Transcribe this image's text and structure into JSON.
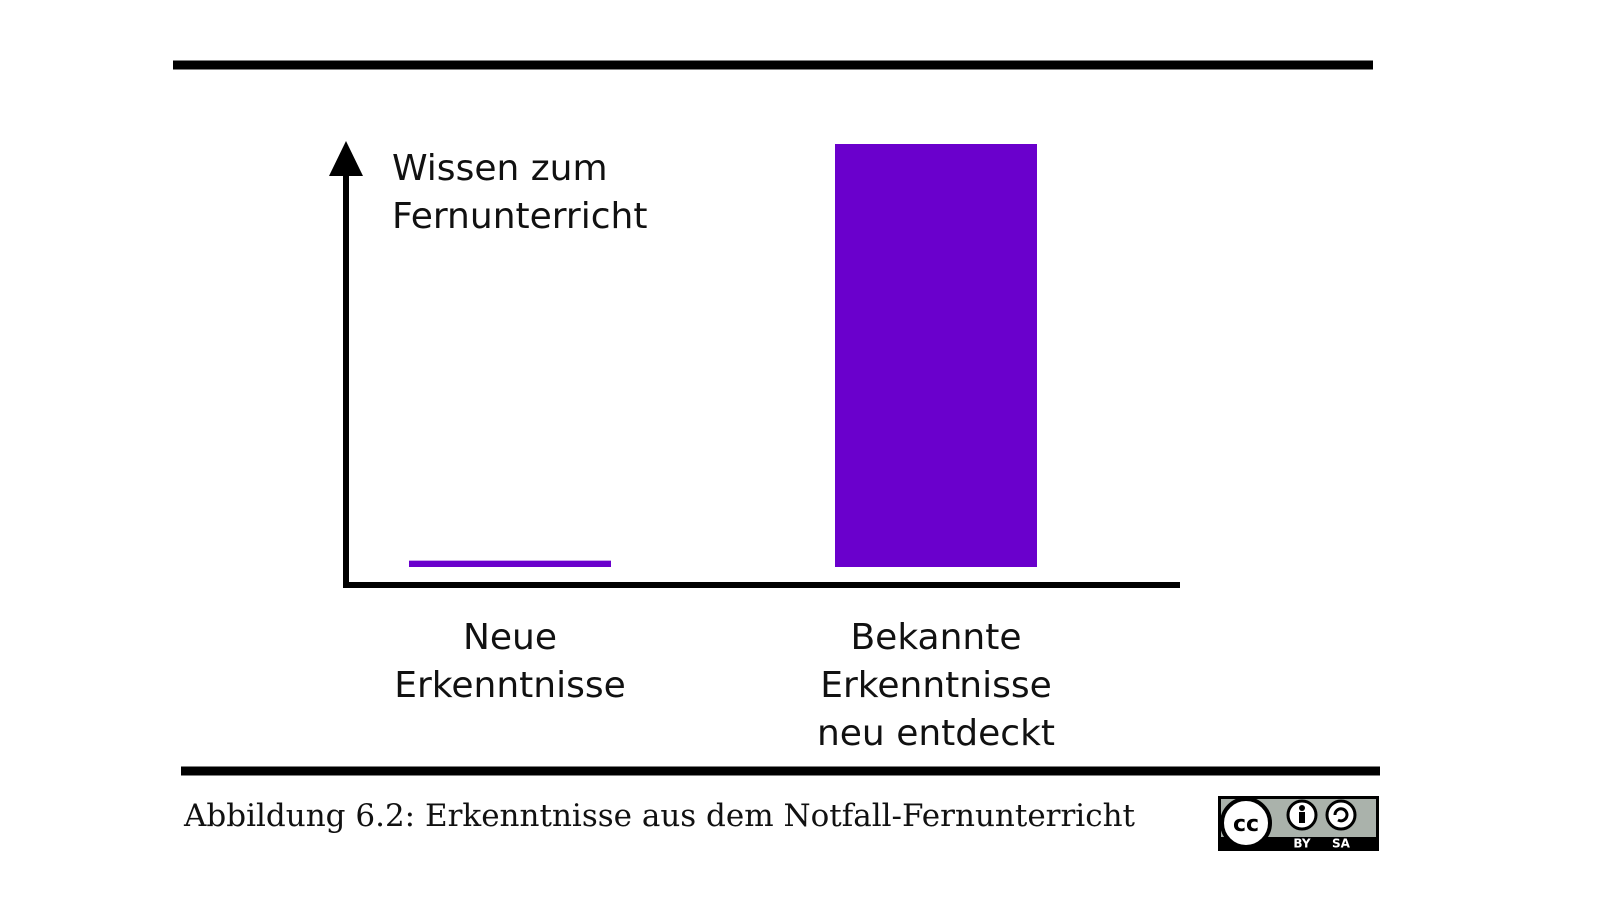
{
  "chart_data": {
    "type": "bar",
    "y_label": "Wissen zum Fernunterricht",
    "categories": [
      "Neue Erkenntnisse",
      "Bekannte Erkenntnisse neu entdeckt"
    ],
    "values": [
      1.5,
      100
    ],
    "color": "#6a00cc",
    "ylim": [
      0,
      100
    ]
  },
  "figure_caption": "Abbildung 6.2: Erkenntnisse aus dem Notfall-Fernunterricht",
  "license": {
    "cc": "cc",
    "by": "BY",
    "sa": "SA"
  }
}
